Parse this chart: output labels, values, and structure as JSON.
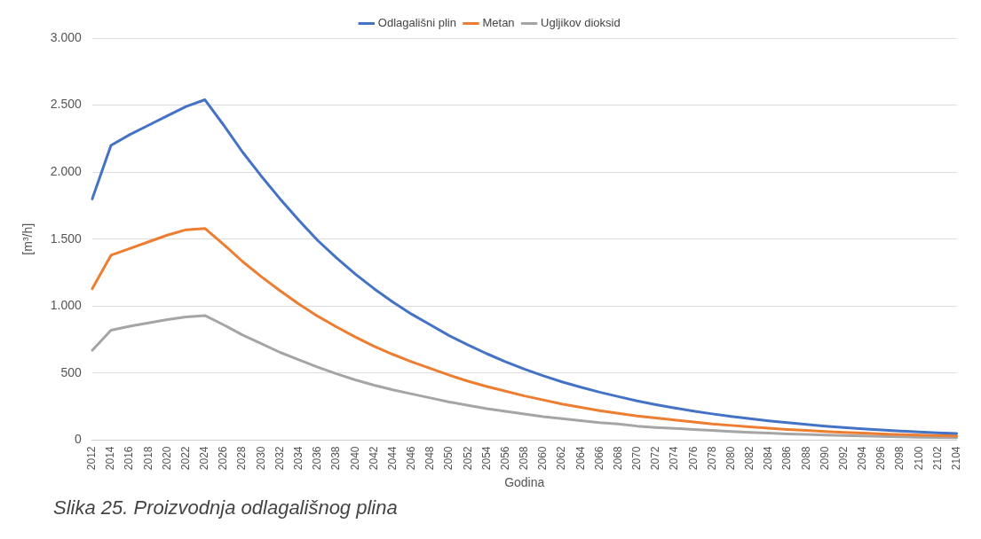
{
  "chart_data": {
    "type": "line",
    "xlabel": "Godina",
    "ylabel": "[m³/h]",
    "annotations": [
      "Slika 25. Proizvodnja odlagališnog plina"
    ],
    "categories": [
      "2012",
      "2014",
      "2016",
      "2018",
      "2020",
      "2022",
      "2024",
      "2026",
      "2028",
      "2030",
      "2032",
      "2034",
      "2036",
      "2038",
      "2040",
      "2042",
      "2044",
      "2046",
      "2048",
      "2050",
      "2052",
      "2054",
      "2056",
      "2058",
      "2060",
      "2062",
      "2064",
      "2066",
      "2068",
      "2070",
      "2072",
      "2074",
      "2076",
      "2078",
      "2080",
      "2082",
      "2084",
      "2086",
      "2088",
      "2090",
      "2092",
      "2094",
      "2096",
      "2098",
      "2100",
      "2102",
      "2104"
    ],
    "series": [
      {
        "name": "Odlagališni plin",
        "color": "#4472c4",
        "values": [
          1800,
          2200,
          2280,
          2350,
          2420,
          2490,
          2540,
          2350,
          2150,
          1970,
          1800,
          1640,
          1490,
          1360,
          1240,
          1130,
          1030,
          940,
          860,
          780,
          710,
          645,
          585,
          530,
          480,
          435,
          395,
          358,
          325,
          293,
          265,
          240,
          217,
          196,
          177,
          160,
          144,
          130,
          117,
          105,
          94,
          85,
          76,
          68,
          61,
          55,
          50
        ]
      },
      {
        "name": "Metan",
        "color": "#ed7d31",
        "values": [
          1130,
          1380,
          1430,
          1480,
          1530,
          1570,
          1580,
          1460,
          1333,
          1220,
          1115,
          1015,
          925,
          845,
          770,
          700,
          640,
          585,
          535,
          485,
          440,
          400,
          365,
          330,
          300,
          270,
          245,
          220,
          200,
          180,
          165,
          150,
          135,
          120,
          110,
          100,
          90,
          80,
          72,
          65,
          58,
          53,
          47,
          42,
          38,
          34,
          31
        ]
      },
      {
        "name": "Ugljikov dioksid",
        "color": "#a5a5a5",
        "values": [
          670,
          820,
          850,
          875,
          900,
          920,
          930,
          860,
          785,
          720,
          655,
          600,
          545,
          495,
          450,
          410,
          375,
          345,
          315,
          285,
          260,
          235,
          215,
          195,
          175,
          160,
          145,
          130,
          120,
          105,
          95,
          88,
          80,
          72,
          65,
          58,
          53,
          47,
          43,
          38,
          34,
          31,
          28,
          25,
          22,
          20,
          18
        ]
      }
    ],
    "ylim": [
      0,
      3000
    ],
    "yticks": [
      {
        "value": 0,
        "label": "0"
      },
      {
        "value": 500,
        "label": "500"
      },
      {
        "value": 1000,
        "label": "1.000"
      },
      {
        "value": 1500,
        "label": "1.500"
      },
      {
        "value": 2000,
        "label": "2.000"
      },
      {
        "value": 2500,
        "label": "2.500"
      },
      {
        "value": 3000,
        "label": "3.000"
      }
    ],
    "grid": "y",
    "legend": "top",
    "marker": "none",
    "line_style": "solid"
  }
}
